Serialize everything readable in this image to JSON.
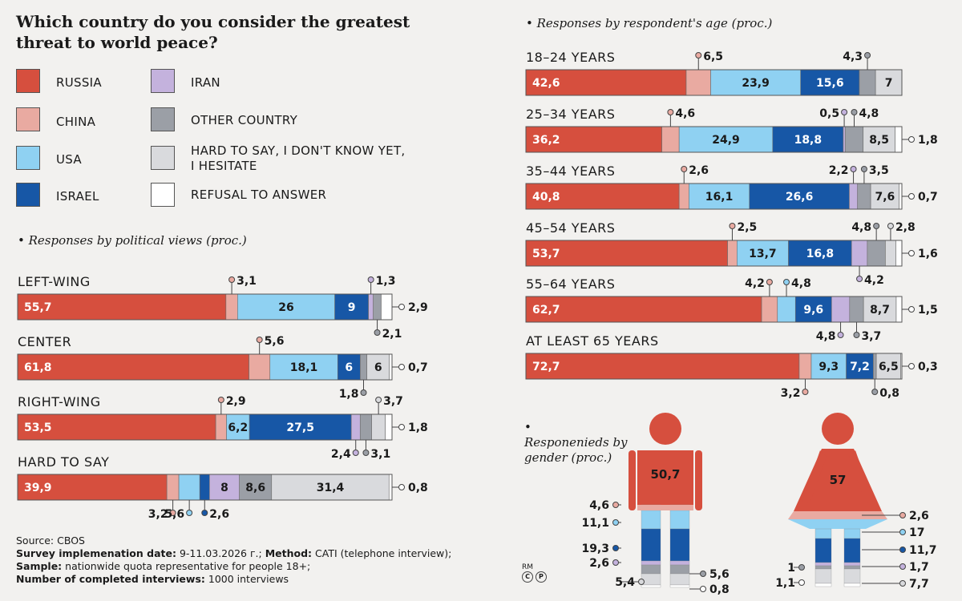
{
  "title": "Which country do you consider the greatest threat to world peace?",
  "legend": [
    {
      "label": "RUSSIA",
      "color": "#d64f3e"
    },
    {
      "label": "CHINA",
      "color": "#e9aaa1"
    },
    {
      "label": "USA",
      "color": "#8fd1f2"
    },
    {
      "label": "ISRAEL",
      "color": "#1757a6"
    },
    {
      "label": "IRAN",
      "color": "#c4b2dd"
    },
    {
      "label": "OTHER COUNTRY",
      "color": "#9b9fa6"
    },
    {
      "label": "HARD TO SAY, I DON'T KNOW YET, I HESITATE",
      "color": "#d9dadd"
    },
    {
      "label": "REFUSAL TO ANSWER",
      "color": "#ffffff"
    }
  ],
  "political_title": "Responses by political views (proc.)",
  "age_title": "Responses by respondent's age (proc.)",
  "gender_title": "Responenieds by gender (proc.)",
  "source": {
    "line1": "Source: CBOS",
    "line2_label": "Survey implemenation date:",
    "line2_value": " 9-11.03.2026 г.; ",
    "line2b_label": "Method:",
    "line2b_value": " CATI (telephone interview);",
    "line3_label": "Sample:",
    "line3_value": " nationwide quota representative for people 18+;",
    "line4_label": "Number of completed interviews:",
    "line4_value": " 1000 interviews"
  },
  "copyright": "RM",
  "chart_data": [
    {
      "type": "bar",
      "orientation": "horizontal",
      "stacked": true,
      "title": "Responses by political views (proc.)",
      "series_names": [
        "RUSSIA",
        "CHINA",
        "USA",
        "ISRAEL",
        "IRAN",
        "OTHER COUNTRY",
        "HARD TO SAY, I DON'T KNOW YET, I HESITATE",
        "REFUSAL TO ANSWER"
      ],
      "categories": [
        "LEFT-WING",
        "CENTER",
        "RIGHT-WING",
        "HARD TO SAY"
      ],
      "values": [
        [
          55.7,
          3.1,
          26,
          9,
          1.3,
          2.1,
          0,
          2.9
        ],
        [
          61.8,
          5.6,
          18.1,
          6,
          0,
          1.8,
          6,
          0.7
        ],
        [
          53.5,
          2.9,
          6.2,
          27.5,
          2.4,
          3.1,
          3.7,
          1.8
        ],
        [
          39.9,
          3.2,
          5.6,
          2.6,
          8,
          8.6,
          31.4,
          0.8
        ]
      ],
      "labels": [
        [
          "55,7",
          "3,1",
          "26",
          "9",
          "1,3",
          "2,1",
          "",
          "2,9"
        ],
        [
          "61,8",
          "5,6",
          "18,1",
          "6",
          "",
          "1,8",
          "6",
          "0,7"
        ],
        [
          "53,5",
          "2,9",
          "6,2",
          "27,5",
          "2,4",
          "3,1",
          "3,7",
          "1,8"
        ],
        [
          "39,9",
          "3,2",
          "5,6",
          "2,6",
          "8",
          "8,6",
          "31,4",
          "0,8"
        ]
      ]
    },
    {
      "type": "bar",
      "orientation": "horizontal",
      "stacked": true,
      "title": "Responses by respondent's age (proc.)",
      "series_names": [
        "RUSSIA",
        "CHINA",
        "USA",
        "ISRAEL",
        "IRAN",
        "OTHER COUNTRY",
        "HARD TO SAY, I DON'T KNOW YET, I HESITATE",
        "REFUSAL TO ANSWER"
      ],
      "categories": [
        "18–24 YEARS",
        "25–34 YEARS",
        "35–44 YEARS",
        "45–54 YEARS",
        "55–64 YEARS",
        "AT LEAST 65 YEARS"
      ],
      "values": [
        [
          42.6,
          6.5,
          23.9,
          15.6,
          0,
          4.3,
          7,
          0
        ],
        [
          36.2,
          4.6,
          24.9,
          18.8,
          0.5,
          4.8,
          8.5,
          1.8
        ],
        [
          40.8,
          2.6,
          16.1,
          26.6,
          2.2,
          3.5,
          7.6,
          0.7
        ],
        [
          53.7,
          2.5,
          13.7,
          16.8,
          4.2,
          4.8,
          2.8,
          1.6
        ],
        [
          62.7,
          4.2,
          4.8,
          9.6,
          4.8,
          3.7,
          8.7,
          1.5
        ],
        [
          72.7,
          3.2,
          9.3,
          7.2,
          0,
          0.8,
          6.5,
          0.3
        ]
      ],
      "labels": [
        [
          "42,6",
          "6,5",
          "23,9",
          "15,6",
          "",
          "4,3",
          "7",
          ""
        ],
        [
          "36,2",
          "4,6",
          "24,9",
          "18,8",
          "0,5",
          "4,8",
          "8,5",
          "1,8"
        ],
        [
          "40,8",
          "2,6",
          "16,1",
          "26,6",
          "2,2",
          "3,5",
          "7,6",
          "0,7"
        ],
        [
          "53,7",
          "2,5",
          "13,7",
          "16,8",
          "4,2",
          "4,8",
          "2,8",
          "1,6"
        ],
        [
          "62,7",
          "4,2",
          "4,8",
          "9,6",
          "4,8",
          "3,7",
          "8,7",
          "1,5"
        ],
        [
          "72,7",
          "3,2",
          "9,3",
          "7,2",
          "",
          "0,8",
          "6,5",
          "0,3"
        ]
      ]
    },
    {
      "type": "bar",
      "orientation": "vertical",
      "stacked": true,
      "title": "Responenieds by gender (proc.)",
      "categories": [
        "men",
        "women"
      ],
      "series_names": [
        "RUSSIA",
        "CHINA",
        "USA",
        "ISRAEL",
        "IRAN",
        "OTHER COUNTRY",
        "HARD TO SAY, I DON'T KNOW YET, I HESITATE",
        "REFUSAL TO ANSWER"
      ],
      "values": [
        [
          50.7,
          4.6,
          11.1,
          19.3,
          2.6,
          5.6,
          5.4,
          0.8
        ],
        [
          57,
          2.6,
          17,
          11.7,
          1.7,
          1,
          7.7,
          1.1
        ]
      ],
      "labels": [
        [
          "50,7",
          "4,6",
          "11,1",
          "19,3",
          "2,6",
          "5,6",
          "5,4",
          "0,8"
        ],
        [
          "57",
          "2,6",
          "17",
          "11,7",
          "1,7",
          "1",
          "7,7",
          "1,1"
        ]
      ]
    }
  ]
}
